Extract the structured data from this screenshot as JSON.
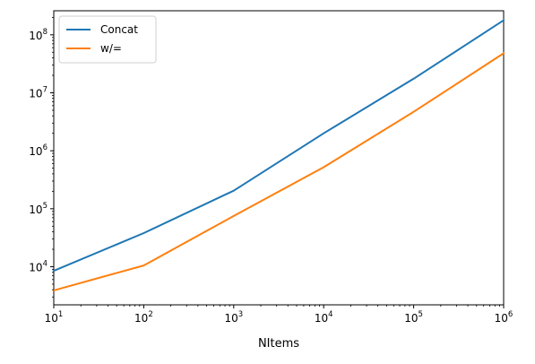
{
  "chart_data": {
    "type": "line",
    "title": "",
    "xlabel": "NItems",
    "ylabel": "",
    "x_scale": "log",
    "y_scale": "log",
    "xlim": [
      10,
      1000000
    ],
    "ylim": [
      2200,
      260000000
    ],
    "x": [
      10,
      100,
      1000,
      10000,
      100000,
      1000000
    ],
    "x_ticks": [
      {
        "value": 10,
        "base": "10",
        "exp": "1"
      },
      {
        "value": 100,
        "base": "10",
        "exp": "2"
      },
      {
        "value": 1000,
        "base": "10",
        "exp": "3"
      },
      {
        "value": 10000,
        "base": "10",
        "exp": "4"
      },
      {
        "value": 100000,
        "base": "10",
        "exp": "5"
      },
      {
        "value": 1000000,
        "base": "10",
        "exp": "6"
      }
    ],
    "y_ticks": [
      {
        "value": 10000,
        "base": "10",
        "exp": "4"
      },
      {
        "value": 100000,
        "base": "10",
        "exp": "5"
      },
      {
        "value": 1000000,
        "base": "10",
        "exp": "6"
      },
      {
        "value": 10000000,
        "base": "10",
        "exp": "7"
      },
      {
        "value": 100000000,
        "base": "10",
        "exp": "8"
      }
    ],
    "series": [
      {
        "name": "Concat",
        "color": "#1f77b4",
        "values": [
          8500,
          38000,
          205000,
          2000000,
          17500000,
          178000000
        ]
      },
      {
        "name": "w/=",
        "color": "#ff7f0e",
        "values": [
          3900,
          10500,
          75000,
          520000,
          4700000,
          48000000
        ]
      }
    ],
    "legend_position": "top-left",
    "grid": false
  }
}
